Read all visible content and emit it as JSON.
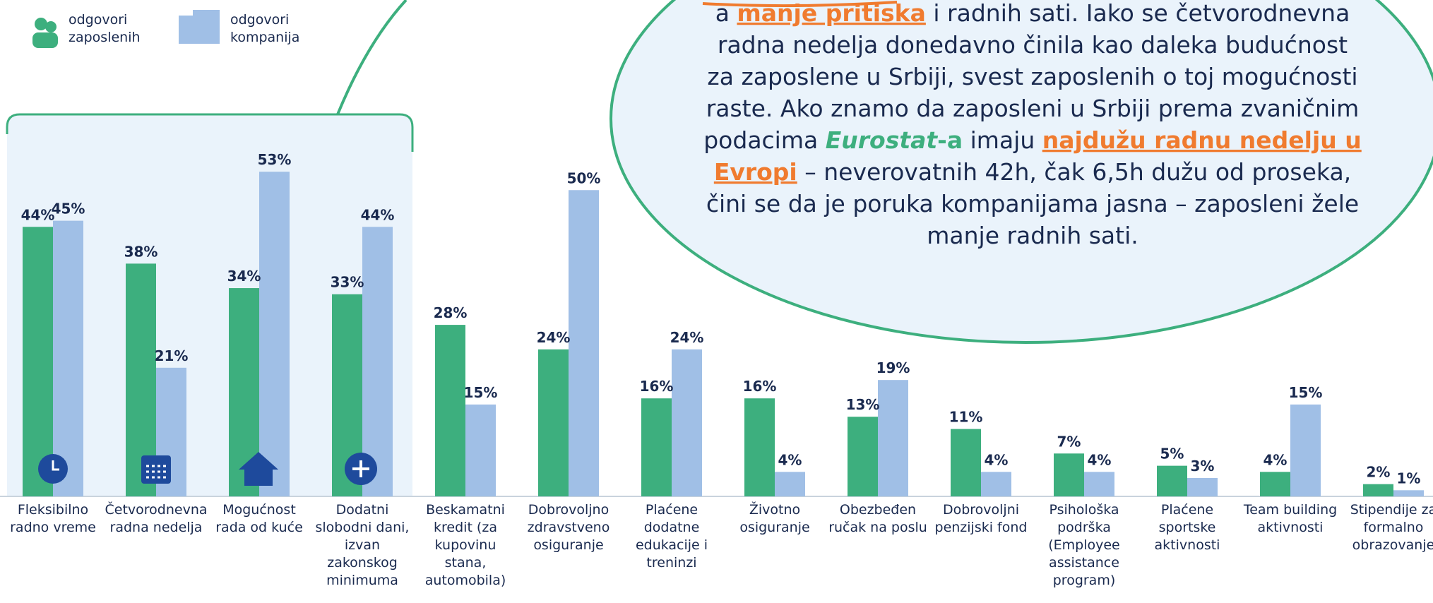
{
  "chart_data": {
    "type": "bar",
    "categories": [
      "Fleksibilno radno vreme",
      "Četvorodnevna radna nedelja",
      "Mogućnost rada od kuće",
      "Dodatni slobodni dani, izvan zakonskog minimuma",
      "Beskamatni kredit (za kupovinu stana, automobila)",
      "Dobrovoljno zdravstveno osiguranje",
      "Plaćene dodatne edukacije i treninzi",
      "Životno osiguranje",
      "Obezbeđen ručak na poslu",
      "Dobrovoljni penzijski fond",
      "Psihološka podrška (Employee assistance program)",
      "Plaćene sportske aktivnosti",
      "Team building aktivnosti",
      "Stipendije za formalno obrazovanje"
    ],
    "series": [
      {
        "name": "odgovori zaposlenih",
        "color": "#3daf7e",
        "values": [
          44,
          38,
          34,
          33,
          28,
          24,
          16,
          16,
          13,
          11,
          7,
          5,
          4,
          2
        ],
        "value_labels": [
          "44%",
          "38%",
          "34%",
          "33%",
          "28%",
          "24%",
          "16%",
          "16%",
          "13%",
          "11%",
          "7%",
          "5%",
          "4%",
          "2%"
        ]
      },
      {
        "name": "odgovori kompanija",
        "color": "#a0bfe6",
        "values": [
          45,
          21,
          53,
          44,
          15,
          50,
          24,
          4,
          19,
          4,
          4,
          3,
          15,
          1
        ],
        "value_labels": [
          "45%",
          "21%",
          "53%",
          "44%",
          "15%",
          "50%",
          "24%",
          "4%",
          "19%",
          "4%",
          "4%",
          "3%",
          "15%",
          "1%"
        ]
      }
    ],
    "ylim": [
      0,
      80
    ]
  },
  "bubble": {
    "lines": [
      [
        "a ",
        "manje pritiska",
        " i radnih sati. Iako se četvorodnevna"
      ],
      [
        "radna nedelja donedavno činila kao daleka budućnost"
      ],
      [
        "za zaposlene u Srbiji, svest zaposlenih o toj mogućnosti"
      ],
      [
        "raste. Ako znamo da zaposleni u Srbiji prema zvaničnim"
      ],
      [
        "podacima ",
        "Eurostat",
        "-a",
        " imaju ",
        "najdužu radnu nedelju u"
      ],
      [
        "Evropi",
        " – neverovatnih 42h, čak 6,5h dužu od proseka,"
      ],
      [
        "čini se da je poruka kompanijama jasna – zaposleni žele"
      ],
      [
        "manje radnih sati."
      ]
    ]
  }
}
